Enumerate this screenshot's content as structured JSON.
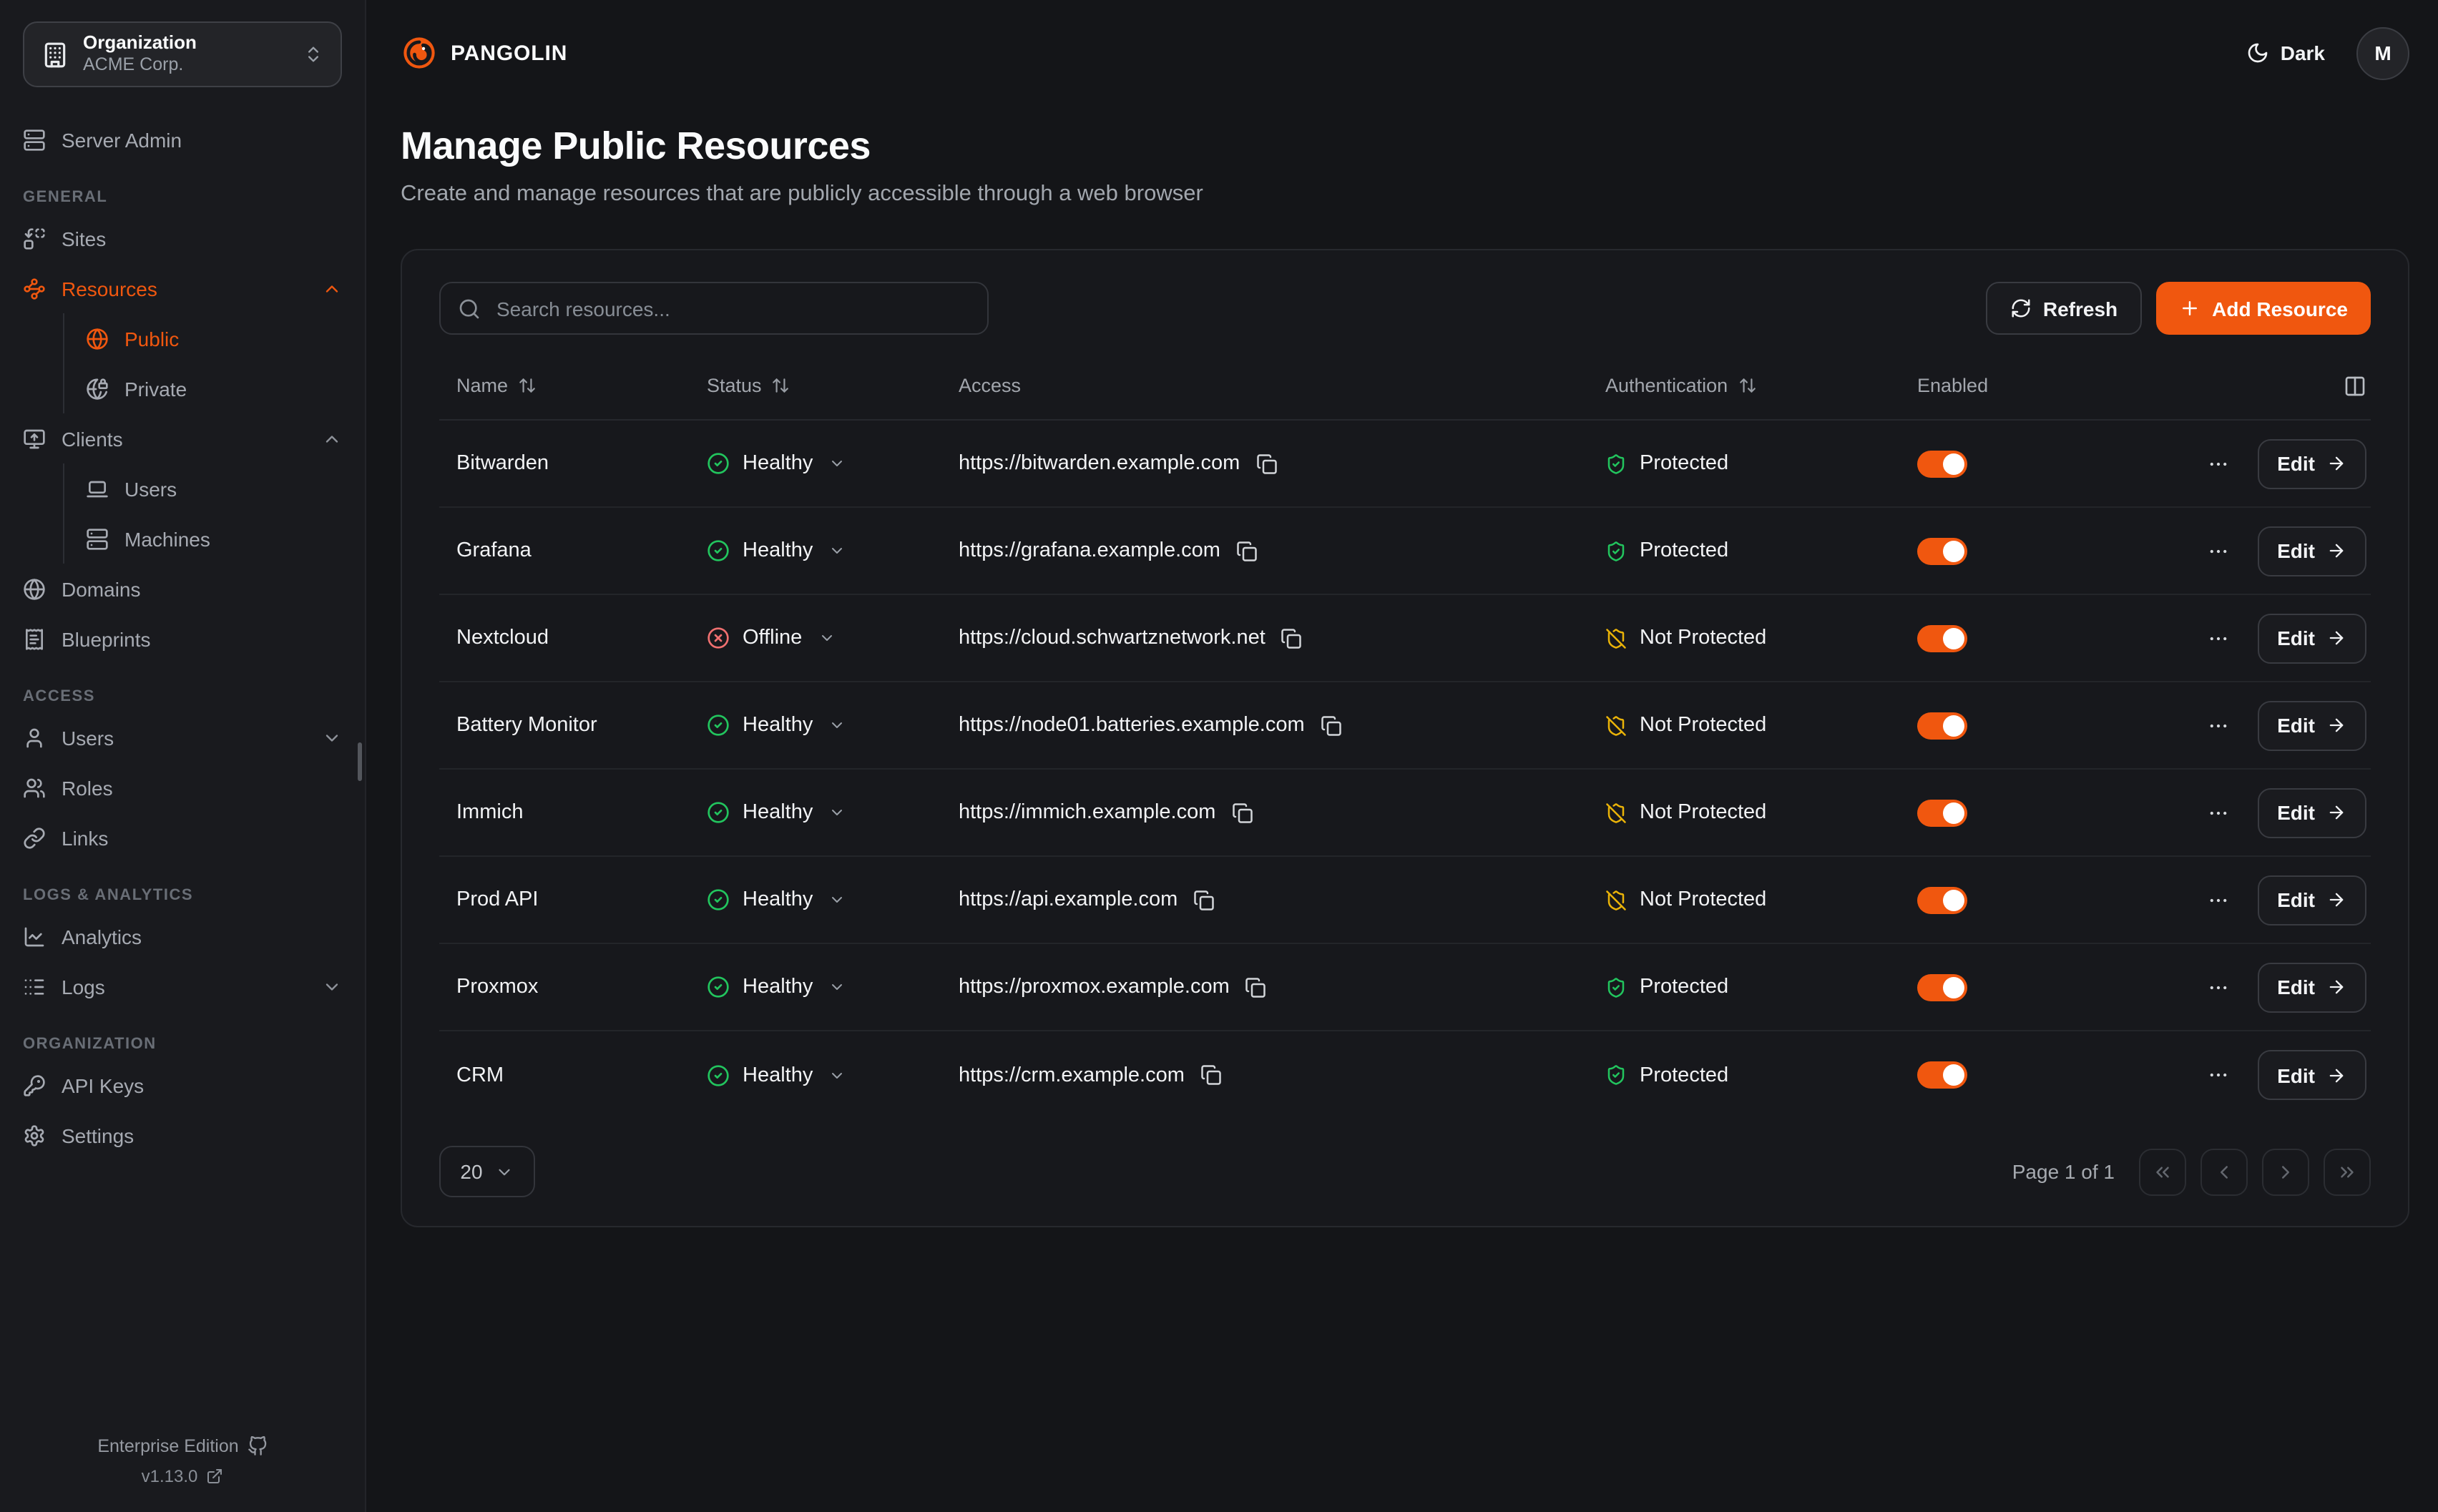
{
  "theme": {
    "accent": "#f0570f",
    "healthy_green": "#22c55e",
    "offline_red": "#f07070",
    "warning_amber": "#eab308",
    "background": "#141518",
    "card_background": "#17181c"
  },
  "org_switcher": {
    "label": "Organization",
    "value": "ACME Corp.",
    "icon": "building-icon"
  },
  "sidebar": {
    "server_admin": {
      "label": "Server Admin",
      "icon": "server-icon"
    },
    "sections": [
      {
        "label": "GENERAL",
        "items": [
          {
            "icon": "replace-icon",
            "label": "Sites"
          },
          {
            "icon": "waypoints-icon",
            "label": "Resources",
            "active": true,
            "chevron": "up"
          },
          {
            "icon": "globe-icon",
            "label": "Public",
            "active": true,
            "sub": true
          },
          {
            "icon": "globe-lock-icon",
            "label": "Private",
            "sub": true
          },
          {
            "icon": "monitor-up-icon",
            "label": "Clients",
            "chevron": "up"
          },
          {
            "icon": "laptop-icon",
            "label": "Users",
            "sub": true
          },
          {
            "icon": "server-icon",
            "label": "Machines",
            "sub": true
          },
          {
            "icon": "globe-icon",
            "label": "Domains"
          },
          {
            "icon": "receipt-text-icon",
            "label": "Blueprints"
          }
        ]
      },
      {
        "label": "ACCESS",
        "items": [
          {
            "icon": "user-icon",
            "label": "Users",
            "chevron": "down"
          },
          {
            "icon": "users-icon",
            "label": "Roles"
          },
          {
            "icon": "link-icon",
            "label": "Links"
          }
        ]
      },
      {
        "label": "LOGS & ANALYTICS",
        "items": [
          {
            "icon": "chart-line-icon",
            "label": "Analytics"
          },
          {
            "icon": "logs-icon",
            "label": "Logs",
            "chevron": "down"
          }
        ]
      },
      {
        "label": "ORGANIZATION",
        "items": [
          {
            "icon": "key-icon",
            "label": "API Keys"
          },
          {
            "icon": "gear-icon",
            "label": "Settings"
          }
        ]
      }
    ],
    "footer": {
      "edition": "Enterprise Edition",
      "version": "v1.13.0"
    }
  },
  "topbar": {
    "brand": "PANGOLIN",
    "theme_toggle_label": "Dark",
    "avatar_initial": "M"
  },
  "page": {
    "title": "Manage Public Resources",
    "subtitle": "Create and manage resources that are publicly accessible through a web browser"
  },
  "toolbar": {
    "search_placeholder": "Search resources...",
    "refresh_label": "Refresh",
    "add_resource_label": "Add Resource"
  },
  "table": {
    "columns": [
      {
        "label": "Name",
        "sortable": true
      },
      {
        "label": "Status",
        "sortable": true
      },
      {
        "label": "Access",
        "sortable": false
      },
      {
        "label": "Authentication",
        "sortable": true
      },
      {
        "label": "Enabled",
        "sortable": false
      }
    ],
    "edit_label": "Edit",
    "rows": [
      {
        "name": "Bitwarden",
        "status": "Healthy",
        "status_kind": "healthy",
        "url": "https://bitwarden.example.com",
        "auth": "Protected",
        "auth_kind": "protected",
        "enabled": true
      },
      {
        "name": "Grafana",
        "status": "Healthy",
        "status_kind": "healthy",
        "url": "https://grafana.example.com",
        "auth": "Protected",
        "auth_kind": "protected",
        "enabled": true
      },
      {
        "name": "Nextcloud",
        "status": "Offline",
        "status_kind": "offline",
        "url": "https://cloud.schwartznetwork.net",
        "auth": "Not Protected",
        "auth_kind": "not_protected",
        "enabled": true
      },
      {
        "name": "Battery Monitor",
        "status": "Healthy",
        "status_kind": "healthy",
        "url": "https://node01.batteries.example.com",
        "auth": "Not Protected",
        "auth_kind": "not_protected",
        "enabled": true
      },
      {
        "name": "Immich",
        "status": "Healthy",
        "status_kind": "healthy",
        "url": "https://immich.example.com",
        "auth": "Not Protected",
        "auth_kind": "not_protected",
        "enabled": true
      },
      {
        "name": "Prod API",
        "status": "Healthy",
        "status_kind": "healthy",
        "url": "https://api.example.com",
        "auth": "Not Protected",
        "auth_kind": "not_protected",
        "enabled": true
      },
      {
        "name": "Proxmox",
        "status": "Healthy",
        "status_kind": "healthy",
        "url": "https://proxmox.example.com",
        "auth": "Protected",
        "auth_kind": "protected",
        "enabled": true
      },
      {
        "name": "CRM",
        "status": "Healthy",
        "status_kind": "healthy",
        "url": "https://crm.example.com",
        "auth": "Protected",
        "auth_kind": "protected",
        "enabled": true
      }
    ]
  },
  "pagination": {
    "page_size": "20",
    "page_info": "Page 1 of 1"
  }
}
